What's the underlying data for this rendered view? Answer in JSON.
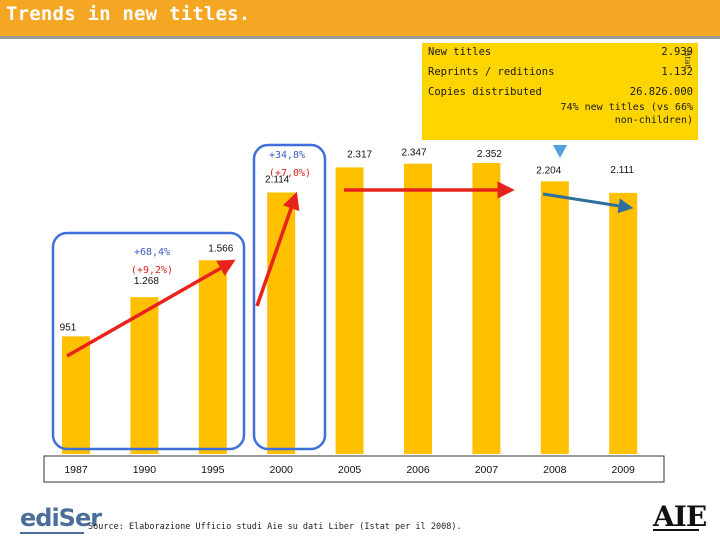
{
  "header": {
    "title": "Trends in new titles."
  },
  "infobox": {
    "rows": [
      {
        "label": "New titles",
        "value": "2.939"
      },
      {
        "label": "Reprints / reditions",
        "value": "1.132"
      },
      {
        "label": "Copies distributed",
        "value": "26.826.000"
      }
    ],
    "note": "74% new titles (vs 66% non-children)"
  },
  "side_label": "Istat",
  "footer": {
    "left_logo": "ediSer",
    "source": "Source: Elaborazione Ufficio studi Aie su dati Liber (Istat per il 2008).",
    "right_logo": "AIE"
  },
  "colors": {
    "header": "#f5a623",
    "bar": "#ffc000",
    "infobox": "#ffd500",
    "arrow_red": "#e8231c",
    "arrow_blue": "#2e6fa0",
    "highlight": "#3f6fd8"
  },
  "chart_data": {
    "type": "bar",
    "categories": [
      "1987",
      "1990",
      "1995",
      "2000",
      "2005",
      "2006",
      "2007",
      "2008",
      "2009"
    ],
    "values": [
      951,
      1268,
      1566,
      2114,
      2317,
      2347,
      2352,
      2204,
      2111
    ],
    "data_labels": [
      "951",
      "1.268",
      "1.566",
      "2.114",
      "2.317",
      "2.347",
      "2.352",
      "2.204",
      "2.111"
    ],
    "annotations": [
      "+68,4%",
      "(+9,2%)",
      "+34,8%",
      "(+7,0%)"
    ],
    "ylim": [
      0,
      2700
    ]
  }
}
